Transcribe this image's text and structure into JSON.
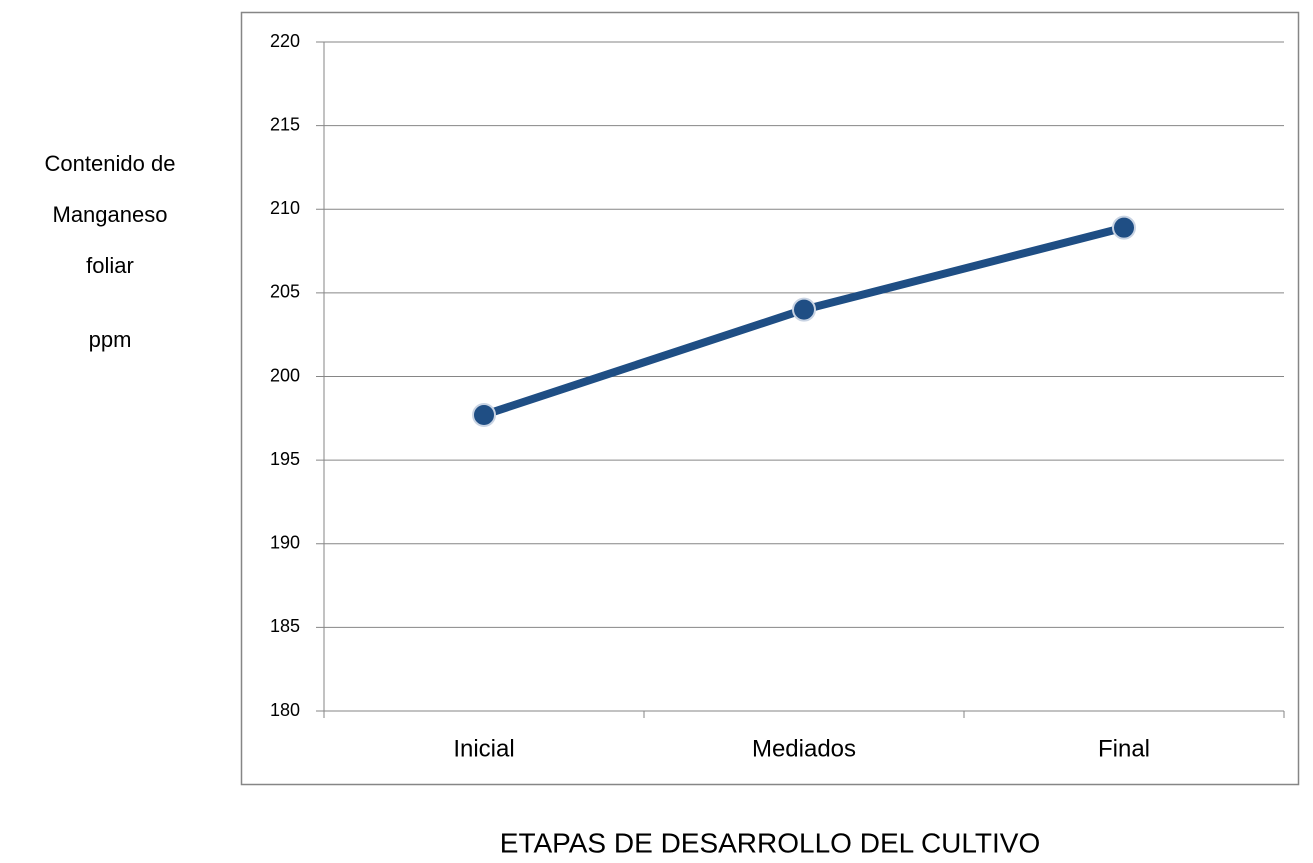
{
  "chart_data": {
    "type": "line",
    "ylabel": [
      "Contenido de",
      "Manganeso",
      "foliar",
      "ppm"
    ],
    "xlabel": "ETAPAS DE DESARROLLO DEL CULTIVO",
    "categories": [
      "Inicial",
      "Mediados",
      "Final"
    ],
    "series": [
      {
        "color": "#1f4e84",
        "values": [
          197.7,
          204,
          208.9
        ]
      }
    ],
    "ylim": [
      180,
      220
    ],
    "yticks": [
      180,
      185,
      190,
      195,
      200,
      205,
      210,
      215,
      220
    ],
    "grid": true
  }
}
